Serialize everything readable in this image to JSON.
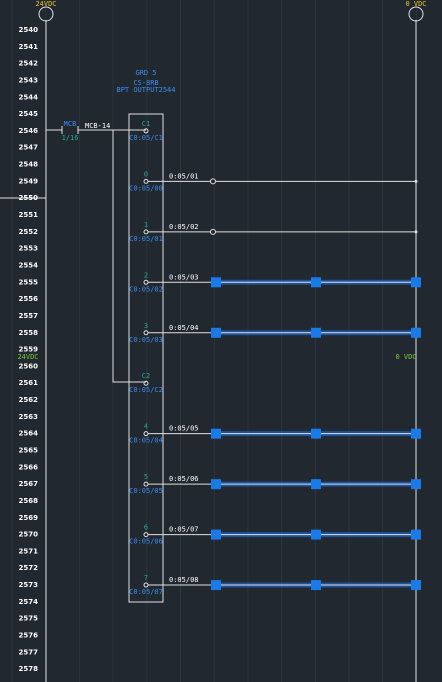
{
  "rails": {
    "left_top": "24VDC",
    "right_top": "0 VDC",
    "left_mid": "24VDC",
    "right_mid": "0 VDC"
  },
  "rung_numbers": [
    "2540",
    "2541",
    "2542",
    "2543",
    "2544",
    "2545",
    "2546",
    "2547",
    "2548",
    "2549",
    "2550",
    "2551",
    "2552",
    "2553",
    "2554",
    "2555",
    "2556",
    "2557",
    "2558",
    "2559",
    "2560",
    "2561",
    "2562",
    "2563",
    "2564",
    "2565",
    "2566",
    "2567",
    "2568",
    "2569",
    "2570",
    "2571",
    "2572",
    "2573",
    "2574",
    "2575",
    "2576",
    "2577",
    "2578"
  ],
  "breaker": {
    "tag": "MCB",
    "rating": "1/16",
    "wire": "MCB-14"
  },
  "module": {
    "lines": [
      "GRD 5",
      "CS-8RB",
      "BPT OUTPUT2544"
    ]
  },
  "commons": [
    {
      "terminal": "C1",
      "label": "C0:05/C1"
    },
    {
      "terminal": "C2",
      "label": "C0:05/C2"
    }
  ],
  "outputs": [
    {
      "terminal": "0",
      "label": "C0:05/00",
      "wire": "0:05/01"
    },
    {
      "terminal": "1",
      "label": "C0:05/01",
      "wire": "0:05/02"
    },
    {
      "terminal": "2",
      "label": "C0:05/02",
      "wire": "0:05/03"
    },
    {
      "terminal": "3",
      "label": "C0:05/03",
      "wire": "0:05/04"
    },
    {
      "terminal": "4",
      "label": "C0:05/04",
      "wire": "0:05/05"
    },
    {
      "terminal": "5",
      "label": "C0:05/05",
      "wire": "0:05/06"
    },
    {
      "terminal": "6",
      "label": "C0:05/06",
      "wire": "0:05/07"
    },
    {
      "terminal": "7",
      "label": "C0:05/07",
      "wire": "0:05/08"
    }
  ]
}
